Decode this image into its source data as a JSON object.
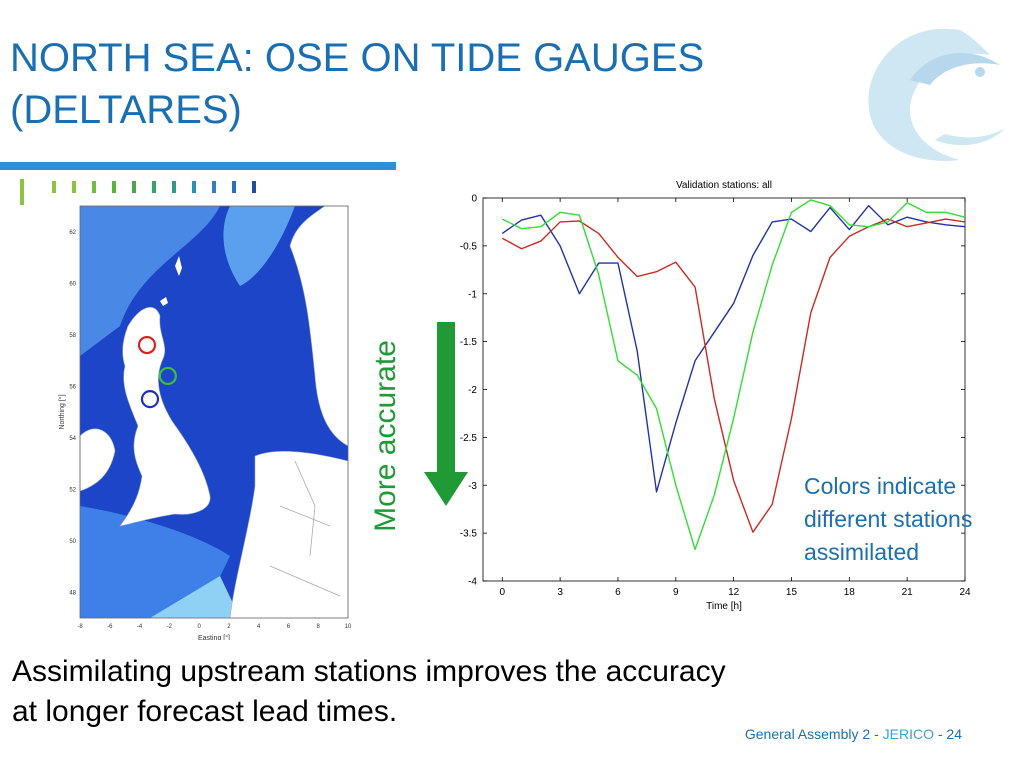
{
  "slide": {
    "title": "NORTH SEA: OSE ON TIDE GAUGES (DELTARES)",
    "accuracy_label": "More accurate",
    "note_lines": [
      "Colors indicate",
      "different stations",
      "assimilated"
    ],
    "body_lines": [
      "Assimilating upstream stations improves the accuracy",
      "at longer forecast lead times."
    ],
    "footer": {
      "event": "General Assembly 2",
      "separator": " - ",
      "project": "JERICO",
      "page": "24"
    },
    "colors": {
      "title": "#1a6fb3",
      "rule": "#2f8fd6",
      "accent_green": "#1f9a35",
      "dashes": [
        "#8bc53f",
        "#8bc53f",
        "#8bc53f",
        "#6fbf3f",
        "#5ab53f",
        "#4aa84a",
        "#3aa16b",
        "#2f9a8a",
        "#2f8fb2",
        "#2f80c8",
        "#2a6fc0",
        "#1f4fa0"
      ]
    }
  },
  "map": {
    "xlabel": "Easting [°]",
    "ylabel": "Northing [°]",
    "xticks": [
      "-8",
      "-6",
      "-4",
      "-2",
      "0",
      "2",
      "4",
      "6",
      "8",
      "10"
    ],
    "yticks": [
      "62",
      "60",
      "58",
      "56",
      "54",
      "52",
      "50",
      "48"
    ],
    "station_circles": [
      {
        "color": "#e02020",
        "lon": -3.5,
        "lat": 57.6
      },
      {
        "color": "#3cbf3c",
        "lon": -2.1,
        "lat": 56.4
      },
      {
        "color": "#1a2fc8",
        "lon": -3.3,
        "lat": 55.5
      }
    ]
  },
  "chart_data": {
    "type": "line",
    "title": "Validation stations: all",
    "xlabel": "Time [h]",
    "ylabel": "",
    "xlim": [
      -1,
      24
    ],
    "ylim": [
      -4,
      0
    ],
    "xticks": [
      0,
      3,
      6,
      9,
      12,
      15,
      18,
      21,
      24
    ],
    "yticks": [
      0,
      -0.5,
      -1,
      -1.5,
      -2,
      -2.5,
      -3,
      -3.5,
      -4
    ],
    "grid": false,
    "x": [
      0,
      1,
      2,
      3,
      4,
      5,
      6,
      7,
      8,
      9,
      10,
      11,
      12,
      13,
      14,
      15,
      16,
      17,
      18,
      19,
      20,
      21,
      22,
      23,
      24
    ],
    "series": [
      {
        "color": "#2233aa",
        "values": [
          -0.37,
          -0.23,
          -0.18,
          -0.5,
          -1.0,
          -0.68,
          -0.68,
          -1.6,
          -3.07,
          -2.35,
          -1.7,
          -1.4,
          -1.1,
          -0.6,
          -0.25,
          -0.22,
          -0.35,
          -0.1,
          -0.33,
          -0.08,
          -0.28,
          -0.2,
          -0.25,
          -0.28,
          -0.3
        ]
      },
      {
        "color": "#cc2a22",
        "values": [
          -0.42,
          -0.53,
          -0.45,
          -0.25,
          -0.24,
          -0.37,
          -0.62,
          -0.82,
          -0.77,
          -0.67,
          -0.93,
          -2.1,
          -2.95,
          -3.49,
          -3.2,
          -2.3,
          -1.2,
          -0.62,
          -0.4,
          -0.3,
          -0.22,
          -0.3,
          -0.26,
          -0.22,
          -0.25
        ]
      },
      {
        "color": "#33dd33",
        "values": [
          -0.22,
          -0.32,
          -0.3,
          -0.15,
          -0.18,
          -0.8,
          -1.7,
          -1.85,
          -2.2,
          -3.0,
          -3.67,
          -3.1,
          -2.3,
          -1.4,
          -0.7,
          -0.15,
          -0.02,
          -0.08,
          -0.28,
          -0.3,
          -0.25,
          -0.05,
          -0.15,
          -0.15,
          -0.2
        ]
      }
    ]
  }
}
